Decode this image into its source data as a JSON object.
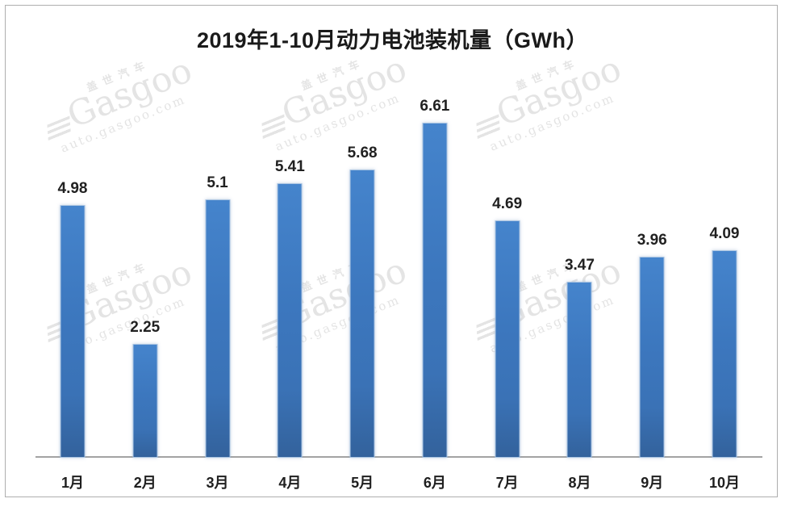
{
  "chart_data": {
    "type": "bar",
    "title": "2019年1-10月动力电池装机量（GWh）",
    "categories": [
      "1月",
      "2月",
      "3月",
      "4月",
      "5月",
      "6月",
      "7月",
      "8月",
      "9月",
      "10月"
    ],
    "values": [
      4.98,
      2.25,
      5.1,
      5.41,
      5.68,
      6.61,
      4.69,
      3.47,
      3.96,
      4.09
    ],
    "value_labels": [
      "4.98",
      "2.25",
      "5.1",
      "5.41",
      "5.68",
      "6.61",
      "4.69",
      "3.47",
      "3.96",
      "4.09"
    ],
    "xlabel": "",
    "ylabel": "",
    "ylim": [
      0,
      7.5
    ],
    "grid": false,
    "legend": false,
    "data_labels_shown": true,
    "y_axis_shown": false
  },
  "watermark": {
    "brand_cn": "盖世汽车",
    "brand_en": "Gasgoo",
    "url": "auto.gasgoo.com"
  },
  "colors": {
    "bar_main": "#3C77BE",
    "bar_top": "#4584CC",
    "bar_bottom": "#33629C",
    "bar_outline": "#A9C4E2",
    "axis_line": "#A3A3A3",
    "frame_border": "#AEAEAE",
    "title_text": "#1A1A1A",
    "label_text": "#212121",
    "watermark": "#E4E4E4",
    "background": "#FFFFFF"
  }
}
